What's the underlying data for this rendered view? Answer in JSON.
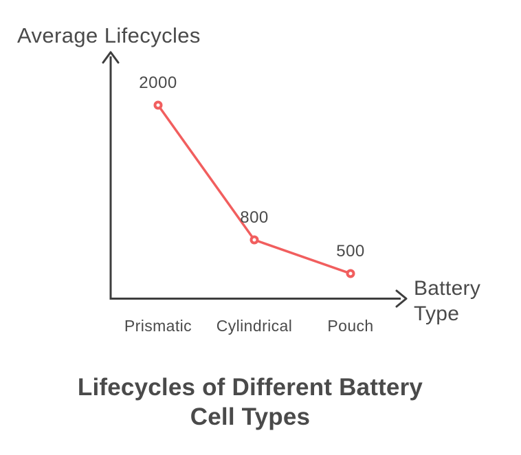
{
  "chart_data": {
    "type": "line",
    "categories": [
      "Prismatic",
      "Cylindrical",
      "Pouch"
    ],
    "values": [
      2000,
      800,
      500
    ],
    "data_labels": [
      "2000",
      "800",
      "500"
    ],
    "title": "Lifecycles of Different Battery\nCell Types",
    "xlabel": "Battery\nType",
    "ylabel": "Average Lifecycles",
    "grid": false,
    "legend": false,
    "axis_style": "arrow-sketch",
    "marker": "open-circle",
    "colors": {
      "line": "#f15e5e",
      "marker_fill": "#ffffff",
      "axis": "#3e3e3e",
      "text": "#4a4a4a",
      "background": "#ffffff"
    }
  }
}
